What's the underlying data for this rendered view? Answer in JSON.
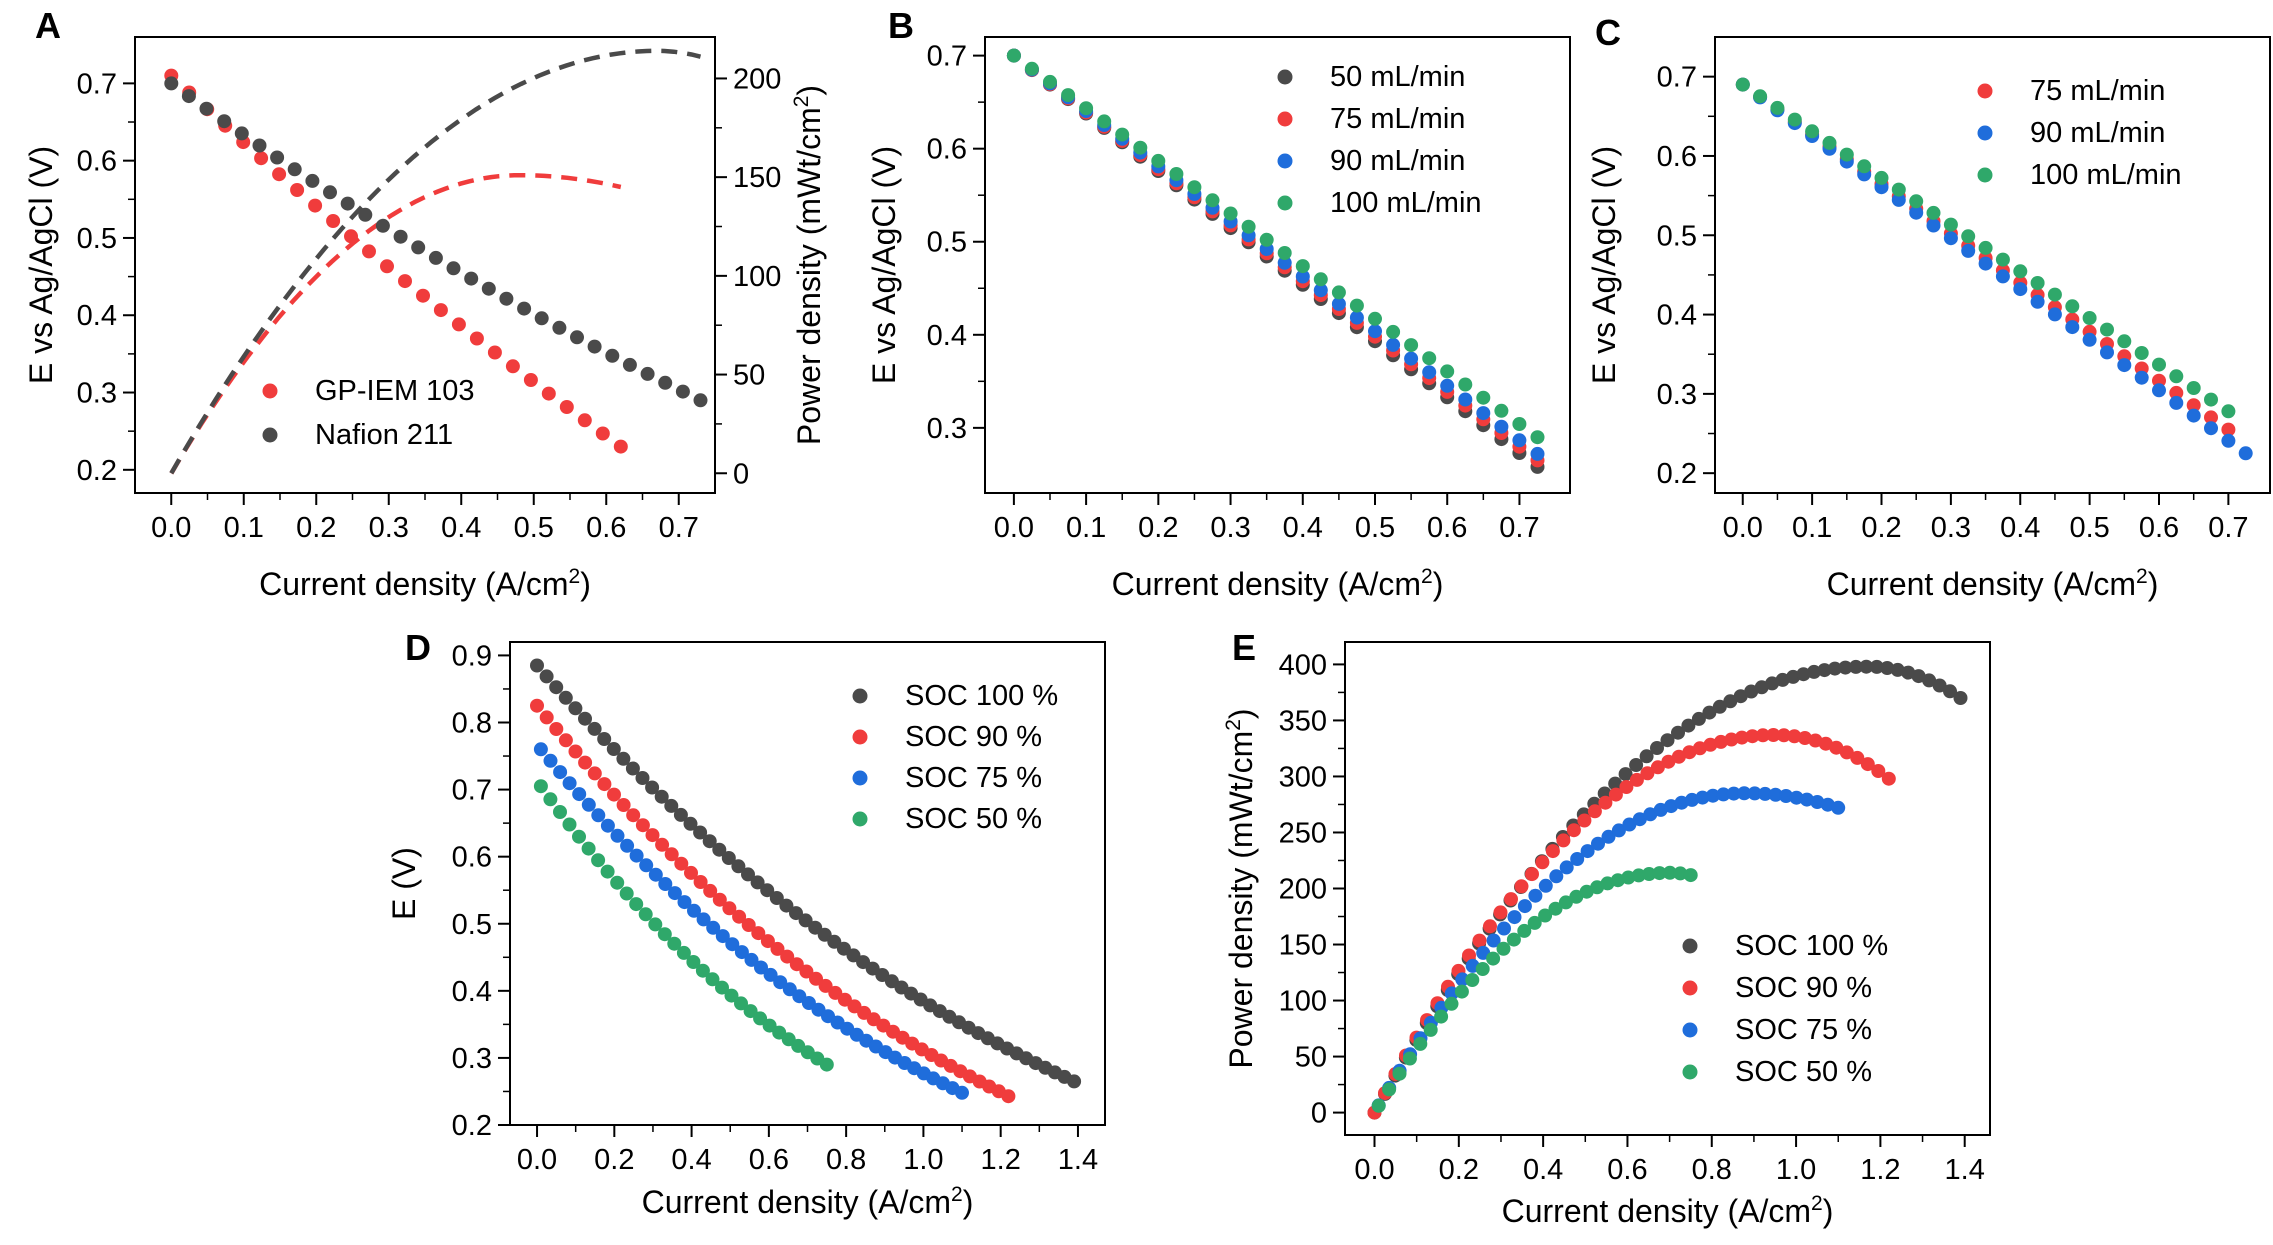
{
  "colors": {
    "black": "#4a4a4a",
    "red": "#f03c3c",
    "blue": "#1f6ddb",
    "green": "#2fa86a"
  },
  "chart_data": [
    {
      "panel": "A",
      "type": "scatter",
      "xlabel": "Current density (A/cm",
      "xlabel_sup": "2",
      "xlabel_end": ")",
      "ylabel": "E vs Ag/AgCl (V)",
      "y2label": "Power density (mWt/cm",
      "y2label_sup": "2",
      "y2label_end": ")",
      "xlim": [
        -0.05,
        0.75
      ],
      "ylim": [
        0.17,
        0.76
      ],
      "y2lim": [
        -10,
        221
      ],
      "xticks": [
        "0.0",
        "0.1",
        "0.2",
        "0.3",
        "0.4",
        "0.5",
        "0.6",
        "0.7"
      ],
      "yticks": [
        "0.2",
        "0.3",
        "0.4",
        "0.5",
        "0.6",
        "0.7"
      ],
      "y2ticks": [
        "0",
        "50",
        "100",
        "150",
        "200"
      ],
      "legend_position": "bottom-left",
      "series": [
        {
          "name": "GP-IEM 103",
          "color": "red",
          "x_start": 0.0,
          "x_end": 0.62,
          "n": 26,
          "y_start": 0.71,
          "y_end": 0.23,
          "curve": 0.12,
          "power": {
            "x_end": 0.62,
            "max_x": 0.48,
            "max_y": 151,
            "end_y": 145
          }
        },
        {
          "name": "Nafion 211",
          "color": "black",
          "x_start": 0.0,
          "x_end": 0.73,
          "n": 31,
          "y_start": 0.7,
          "y_end": 0.29,
          "curve": 0.18,
          "power": {
            "x_end": 0.73,
            "max_x": 0.67,
            "max_y": 214,
            "end_y": 211
          }
        }
      ]
    },
    {
      "panel": "B",
      "type": "scatter",
      "xlabel": "Current density (A/cm",
      "xlabel_sup": "2",
      "xlabel_end": ")",
      "ylabel": "E vs Ag/AgCl (V)",
      "xlim": [
        -0.04,
        0.77
      ],
      "ylim": [
        0.23,
        0.72
      ],
      "xticks": [
        "0.0",
        "0.1",
        "0.2",
        "0.3",
        "0.4",
        "0.5",
        "0.6",
        "0.7"
      ],
      "yticks": [
        "0.3",
        "0.4",
        "0.5",
        "0.6",
        "0.7"
      ],
      "legend_position": "top-right",
      "series": [
        {
          "name": "50 mL/min",
          "color": "black",
          "x_start": 0.0,
          "x_end": 0.725,
          "n": 30,
          "y_start": 0.7,
          "y_end": 0.258,
          "curve": 0.02
        },
        {
          "name": "75 mL/min",
          "color": "red",
          "x_start": 0.0,
          "x_end": 0.725,
          "n": 30,
          "y_start": 0.7,
          "y_end": 0.265,
          "curve": 0.02
        },
        {
          "name": "90 mL/min",
          "color": "blue",
          "x_start": 0.0,
          "x_end": 0.725,
          "n": 30,
          "y_start": 0.7,
          "y_end": 0.272,
          "curve": 0.01
        },
        {
          "name": "100 mL/min",
          "color": "green",
          "x_start": 0.0,
          "x_end": 0.725,
          "n": 30,
          "y_start": 0.7,
          "y_end": 0.29,
          "curve": 0.0
        }
      ]
    },
    {
      "panel": "C",
      "type": "scatter",
      "xlabel": "Current density (A/cm",
      "xlabel_sup": "2",
      "xlabel_end": ")",
      "ylabel": "E vs Ag/AgCl (V)",
      "xlim": [
        -0.04,
        0.76
      ],
      "ylim": [
        0.175,
        0.75
      ],
      "xticks": [
        "0.0",
        "0.1",
        "0.2",
        "0.3",
        "0.4",
        "0.5",
        "0.6",
        "0.7"
      ],
      "yticks": [
        "0.2",
        "0.3",
        "0.4",
        "0.5",
        "0.6",
        "0.7"
      ],
      "legend_position": "top-right",
      "series": [
        {
          "name": "75 mL/min",
          "color": "red",
          "x_start": 0.0,
          "x_end": 0.7,
          "n": 29,
          "y_start": 0.69,
          "y_end": 0.255,
          "curve": 0.01
        },
        {
          "name": "90 mL/min",
          "color": "blue",
          "x_start": 0.0,
          "x_end": 0.725,
          "n": 30,
          "y_start": 0.69,
          "y_end": 0.225,
          "curve": 0.01
        },
        {
          "name": "100 mL/min",
          "color": "green",
          "x_start": 0.0,
          "x_end": 0.7,
          "n": 29,
          "y_start": 0.69,
          "y_end": 0.278,
          "curve": 0.0
        }
      ]
    },
    {
      "panel": "D",
      "type": "scatter",
      "xlabel": "Current density (A/cm",
      "xlabel_sup": "2",
      "xlabel_end": ")",
      "ylabel": "E (V)",
      "xlim": [
        -0.07,
        1.47
      ],
      "ylim": [
        0.2,
        0.92
      ],
      "xticks": [
        "0.0",
        "0.2",
        "0.4",
        "0.6",
        "0.8",
        "1.0",
        "1.2",
        "1.4"
      ],
      "yticks": [
        "0.2",
        "0.3",
        "0.4",
        "0.5",
        "0.6",
        "0.7",
        "0.8",
        "0.9"
      ],
      "legend_position": "top-right",
      "series": [
        {
          "name": "SOC 100 %",
          "color": "black",
          "x_start": 0.0,
          "x_end": 1.39,
          "n": 57,
          "y_start": 0.885,
          "y_end": 0.265,
          "curve": 0.4
        },
        {
          "name": "SOC 90 %",
          "color": "red",
          "x_start": 0.0,
          "x_end": 1.22,
          "n": 50,
          "y_start": 0.825,
          "y_end": 0.243,
          "curve": 0.4
        },
        {
          "name": "SOC 75 %",
          "color": "blue",
          "x_start": 0.01,
          "x_end": 1.1,
          "n": 45,
          "y_start": 0.76,
          "y_end": 0.248,
          "curve": 0.4
        },
        {
          "name": "SOC 50 %",
          "color": "green",
          "x_start": 0.01,
          "x_end": 0.75,
          "n": 31,
          "y_start": 0.705,
          "y_end": 0.29,
          "curve": 0.35
        }
      ]
    },
    {
      "panel": "E",
      "type": "scatter",
      "xlabel": "Current density (A/cm",
      "xlabel_sup": "2",
      "xlabel_end": ")",
      "ylabel": "Power density (mWt/cm",
      "ylabel_sup": "2",
      "ylabel_end": ")",
      "xlim": [
        -0.07,
        1.46
      ],
      "ylim": [
        -20,
        420
      ],
      "xticks": [
        "0.0",
        "0.2",
        "0.4",
        "0.6",
        "0.8",
        "1.0",
        "1.2",
        "1.4"
      ],
      "yticks": [
        "0",
        "50",
        "100",
        "150",
        "200",
        "250",
        "300",
        "350",
        "400"
      ],
      "legend_position": "bottom-right",
      "series": [
        {
          "name": "SOC 100  %",
          "color": "black",
          "x_start": 0.0,
          "x_end": 1.39,
          "n": 57,
          "max_x": 1.17,
          "max_y": 398,
          "end_y": 370
        },
        {
          "name": "SOC 90 %",
          "color": "red",
          "x_start": 0.0,
          "x_end": 1.22,
          "n": 50,
          "max_x": 0.95,
          "max_y": 337,
          "end_y": 298
        },
        {
          "name": "SOC 75 %",
          "color": "blue",
          "x_start": 0.01,
          "x_end": 1.1,
          "n": 45,
          "max_x": 0.88,
          "max_y": 285,
          "end_y": 272
        },
        {
          "name": "SOC 50 %",
          "color": "green",
          "x_start": 0.01,
          "x_end": 0.75,
          "n": 31,
          "max_x": 0.7,
          "max_y": 214,
          "end_y": 212
        }
      ]
    }
  ]
}
